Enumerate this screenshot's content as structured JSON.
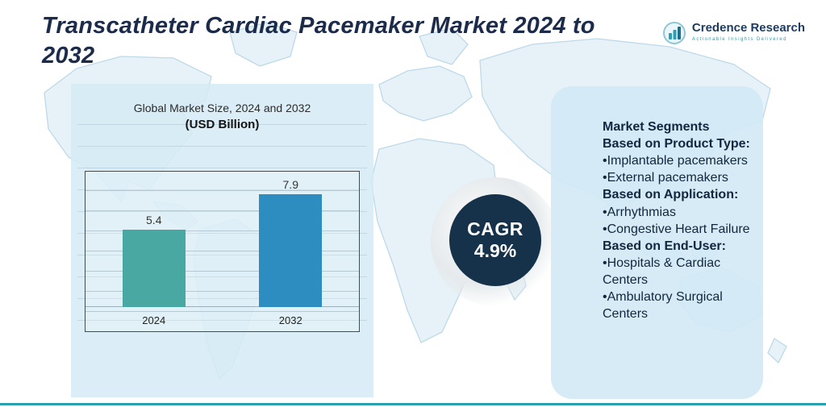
{
  "page": {
    "title": "Transcatheter Cardiac Pacemaker Market 2024 to 2032",
    "accent_teal": "#2ba0af",
    "navy": "#1c2b4a"
  },
  "logo": {
    "name": "Credence Research",
    "tagline": "Actionable Insights Delivered",
    "icon": "globe-bar-chart-icon"
  },
  "chart_data": {
    "type": "bar",
    "title": "Global Market Size, 2024 and 2032",
    "subtitle": "(USD Billion)",
    "categories": [
      "2024",
      "2032"
    ],
    "values": [
      5.4,
      7.9
    ],
    "value_labels": [
      "5.4",
      "7.9"
    ],
    "bar_colors": [
      "#4aa8a2",
      "#2d8dc1"
    ],
    "ylim": [
      0,
      9
    ],
    "grid": "horizontal",
    "legend": "none",
    "xlabel": "",
    "ylabel": ""
  },
  "cagr_badge": {
    "label": "CAGR",
    "value": "4.9%",
    "color": "#15324a"
  },
  "segments_panel": {
    "title": "Market Segments",
    "bullet": "•",
    "groups": [
      {
        "heading": "Based on Product Type:",
        "items": [
          "Implantable pacemakers",
          "External pacemakers"
        ]
      },
      {
        "heading": "Based on Application:",
        "items": [
          "Arrhythmias",
          "Congestive Heart Failure"
        ]
      },
      {
        "heading": "Based on End-User:",
        "items": [
          "Hospitals & Cardiac Centers",
          "Ambulatory Surgical Centers"
        ]
      }
    ]
  }
}
